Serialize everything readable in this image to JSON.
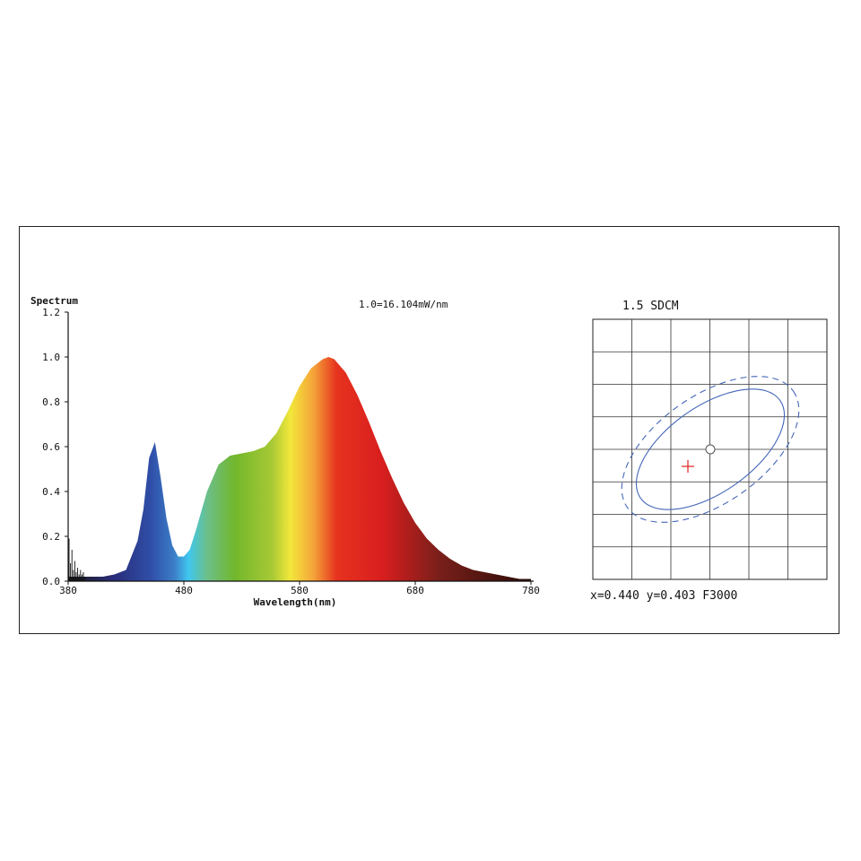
{
  "chart_data": [
    {
      "type": "area",
      "title": "Spectrum",
      "annotation": "1.0=16.104mW/nm",
      "xlabel": "Wavelength(nm)",
      "ylabel": "",
      "xlim": [
        380,
        780
      ],
      "ylim": [
        0,
        1.2
      ],
      "x_ticks": [
        "380",
        "480",
        "580",
        "680",
        "780"
      ],
      "y_ticks": [
        "0.0",
        "0.2",
        "0.4",
        "0.6",
        "0.8",
        "1.0",
        "1.2"
      ],
      "grid": false,
      "x": [
        380,
        390,
        400,
        410,
        420,
        430,
        440,
        445,
        450,
        455,
        460,
        465,
        470,
        475,
        480,
        485,
        490,
        500,
        510,
        520,
        530,
        540,
        550,
        560,
        570,
        580,
        590,
        600,
        605,
        610,
        620,
        630,
        640,
        650,
        660,
        670,
        680,
        690,
        700,
        710,
        720,
        730,
        740,
        750,
        760,
        770,
        780
      ],
      "values": [
        0.02,
        0.02,
        0.02,
        0.02,
        0.03,
        0.05,
        0.18,
        0.32,
        0.55,
        0.62,
        0.46,
        0.28,
        0.16,
        0.11,
        0.11,
        0.14,
        0.22,
        0.4,
        0.52,
        0.56,
        0.57,
        0.58,
        0.6,
        0.66,
        0.76,
        0.87,
        0.95,
        0.99,
        1.0,
        0.99,
        0.93,
        0.83,
        0.71,
        0.58,
        0.46,
        0.35,
        0.26,
        0.19,
        0.14,
        0.1,
        0.07,
        0.05,
        0.04,
        0.03,
        0.02,
        0.01,
        0.01
      ]
    },
    {
      "type": "scatter",
      "title": "1.5 SDCM",
      "caption": "x=0.440 y=0.403 F3000",
      "grid": true,
      "measured_point": {
        "x": 0.44,
        "y": 0.403
      },
      "target_point_label": "F3000",
      "inner_ellipse_sdcm": 1.5,
      "outer_ellipse_style": "dashed"
    }
  ]
}
